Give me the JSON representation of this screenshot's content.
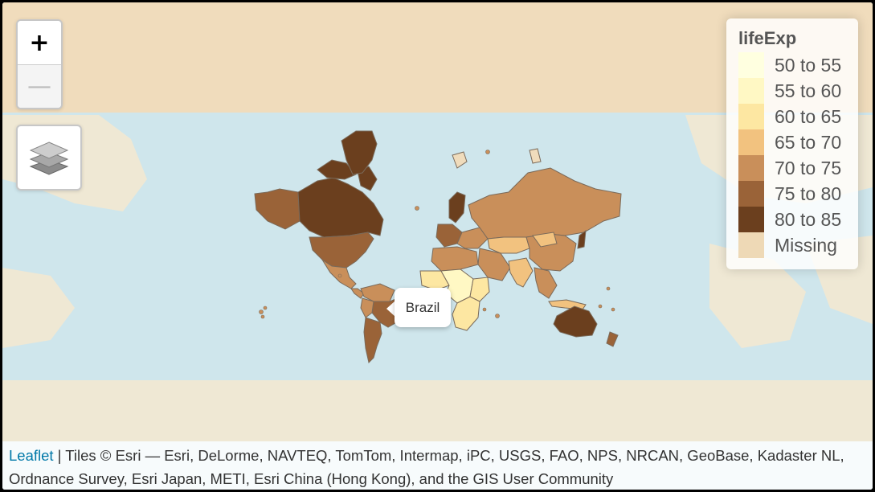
{
  "map": {
    "ocean_color": "#cfe6ec",
    "top_band_color": "#f0dcbc",
    "land_base_color": "#efe8d4"
  },
  "zoom": {
    "zoom_in_label": "+",
    "zoom_out_label": "—"
  },
  "layers_control": {
    "icon": "layers-icon"
  },
  "legend": {
    "title": "lifeExp",
    "items": [
      {
        "label": "50 to 55",
        "color": "#ffffe0"
      },
      {
        "label": "55 to 60",
        "color": "#fff8c4"
      },
      {
        "label": "60 to 65",
        "color": "#fde7a2"
      },
      {
        "label": "65 to 70",
        "color": "#f2c27f"
      },
      {
        "label": "70 to 75",
        "color": "#c98f5a"
      },
      {
        "label": "75 to 80",
        "color": "#9a6338"
      },
      {
        "label": "80 to 85",
        "color": "#6b3f1e"
      },
      {
        "label": "Missing",
        "color": "#eed9b6"
      }
    ]
  },
  "popup": {
    "text": "Brazil"
  },
  "attribution": {
    "link_text": "Leaflet",
    "text": " | Tiles © Esri — Esri, DeLorme, NAVTEQ, TomTom, Intermap, iPC, USGS, FAO, NPS, NRCAN, GeoBase, Kadaster NL, Ordnance Survey, Esri Japan, METI, Esri China (Hong Kong), and the GIS User Community"
  }
}
